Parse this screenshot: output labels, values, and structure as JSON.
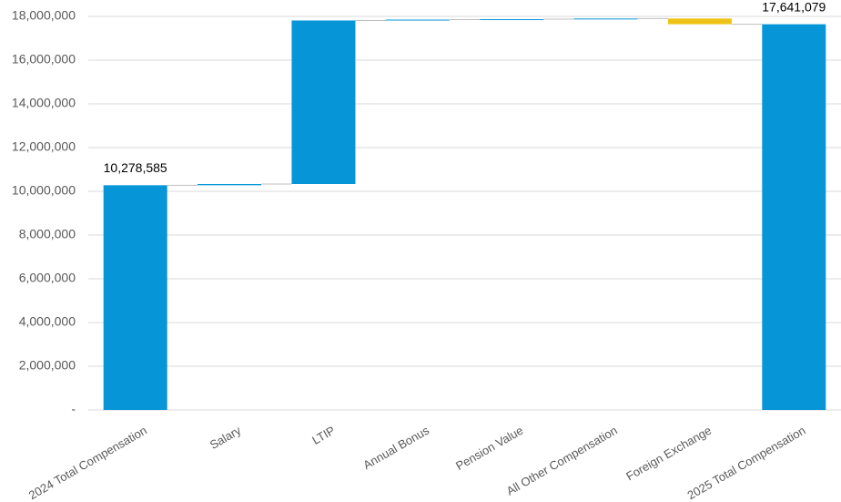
{
  "chart_data": {
    "type": "waterfall",
    "categories": [
      "2024 Total Compensation",
      "Salary",
      "LTIP",
      "Annual Bonus",
      "Pension Value",
      "All Other Compensation",
      "Foreign Exchange",
      "2025 Total Compensation"
    ],
    "measure": [
      "total",
      "relative",
      "relative",
      "relative",
      "relative",
      "relative",
      "relative",
      "total"
    ],
    "values": [
      10278585,
      55000,
      7480000,
      40000,
      20000,
      30000,
      -262506,
      17641079
    ],
    "value_labels": [
      "10,278,585",
      null,
      null,
      null,
      null,
      null,
      null,
      "17,641,079"
    ],
    "increase_color": "#0696d7",
    "decrease_color": "#eec318",
    "total_color": "#0696d7",
    "ylim": [
      0,
      18000000
    ],
    "yticks": [
      {
        "value": 0,
        "label": "-"
      },
      {
        "value": 2000000,
        "label": "2,000,000"
      },
      {
        "value": 4000000,
        "label": "4,000,000"
      },
      {
        "value": 6000000,
        "label": "6,000,000"
      },
      {
        "value": 8000000,
        "label": "8,000,000"
      },
      {
        "value": 10000000,
        "label": "10,000,000"
      },
      {
        "value": 12000000,
        "label": "12,000,000"
      },
      {
        "value": 14000000,
        "label": "14,000,000"
      },
      {
        "value": 16000000,
        "label": "16,000,000"
      },
      {
        "value": 18000000,
        "label": "18,000,000"
      }
    ],
    "grid": true
  }
}
